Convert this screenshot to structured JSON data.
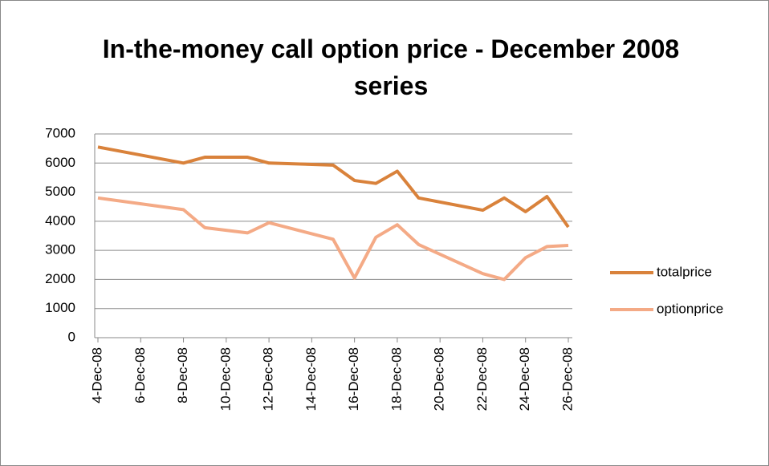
{
  "chart_data": {
    "type": "line",
    "title": "In-the-money call option price - December 2008 series",
    "x": [
      "4-Dec-08",
      "8-Dec-08",
      "9-Dec-08",
      "11-Dec-08",
      "12-Dec-08",
      "15-Dec-08",
      "16-Dec-08",
      "17-Dec-08",
      "18-Dec-08",
      "19-Dec-08",
      "22-Dec-08",
      "23-Dec-08",
      "24-Dec-08",
      "25-Dec-08",
      "26-Dec-08"
    ],
    "series": [
      {
        "name": "totalprice",
        "color": "#d9823b",
        "values": [
          6550,
          6000,
          6200,
          6200,
          6000,
          5930,
          5400,
          5300,
          5720,
          4800,
          4380,
          4800,
          4330,
          4850,
          3800
        ]
      },
      {
        "name": "optionprice",
        "color": "#f4aa86",
        "values": [
          4800,
          4400,
          3780,
          3600,
          3950,
          3380,
          2050,
          3450,
          3880,
          3200,
          2200,
          2000,
          2750,
          3130,
          3170
        ]
      }
    ],
    "xlim": [
      "4-Dec-08",
      "26-Dec-08"
    ],
    "xticks": [
      "4-Dec-08",
      "6-Dec-08",
      "8-Dec-08",
      "10-Dec-08",
      "12-Dec-08",
      "14-Dec-08",
      "16-Dec-08",
      "18-Dec-08",
      "20-Dec-08",
      "22-Dec-08",
      "24-Dec-08",
      "26-Dec-08"
    ],
    "ylim": [
      0,
      7000
    ],
    "yticks": [
      0,
      1000,
      2000,
      3000,
      4000,
      5000,
      6000,
      7000
    ],
    "grid": true,
    "legend": "right"
  }
}
